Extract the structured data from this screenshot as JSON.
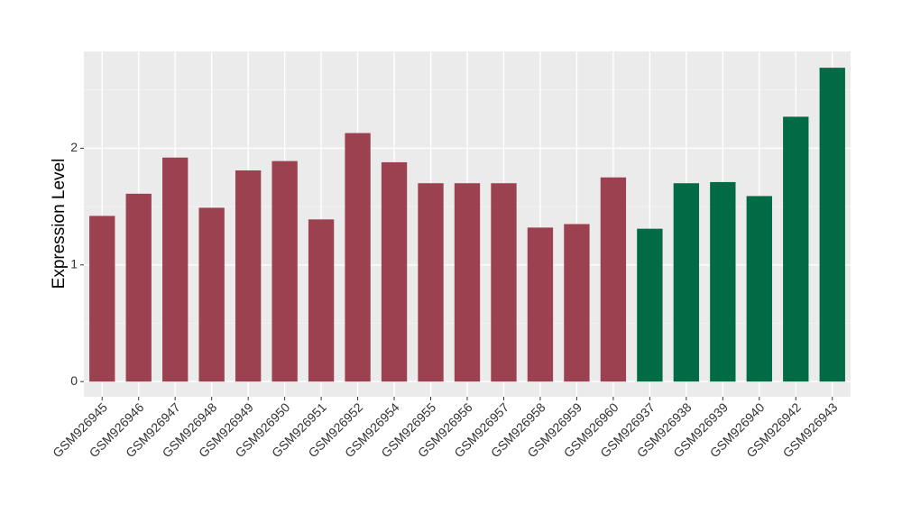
{
  "chart_data": {
    "type": "bar",
    "y_label": "Expression Level",
    "categories": [
      "GSM926945",
      "GSM926946",
      "GSM926947",
      "GSM926948",
      "GSM926949",
      "GSM926950",
      "GSM926951",
      "GSM926952",
      "GSM926954",
      "GSM926955",
      "GSM926956",
      "GSM926957",
      "GSM926958",
      "GSM926959",
      "GSM926960",
      "GSM926937",
      "GSM926938",
      "GSM926939",
      "GSM926940",
      "GSM926942",
      "GSM926943"
    ],
    "values": [
      1.42,
      1.61,
      1.92,
      1.49,
      1.81,
      1.89,
      1.39,
      2.13,
      1.88,
      1.7,
      1.7,
      1.7,
      1.32,
      1.35,
      1.75,
      1.31,
      1.7,
      1.71,
      1.59,
      2.27,
      2.69
    ],
    "colors": [
      "#9b4150",
      "#9b4150",
      "#9b4150",
      "#9b4150",
      "#9b4150",
      "#9b4150",
      "#9b4150",
      "#9b4150",
      "#9b4150",
      "#9b4150",
      "#9b4150",
      "#9b4150",
      "#9b4150",
      "#9b4150",
      "#9b4150",
      "#006b45",
      "#006b45",
      "#006b45",
      "#006b45",
      "#006b45",
      "#006b45"
    ],
    "ylim": [
      -0.13,
      2.83
    ],
    "yticks": [
      0,
      1,
      2
    ],
    "minor_yticks": [
      0.5,
      1.5,
      2.5
    ],
    "grid": true
  }
}
